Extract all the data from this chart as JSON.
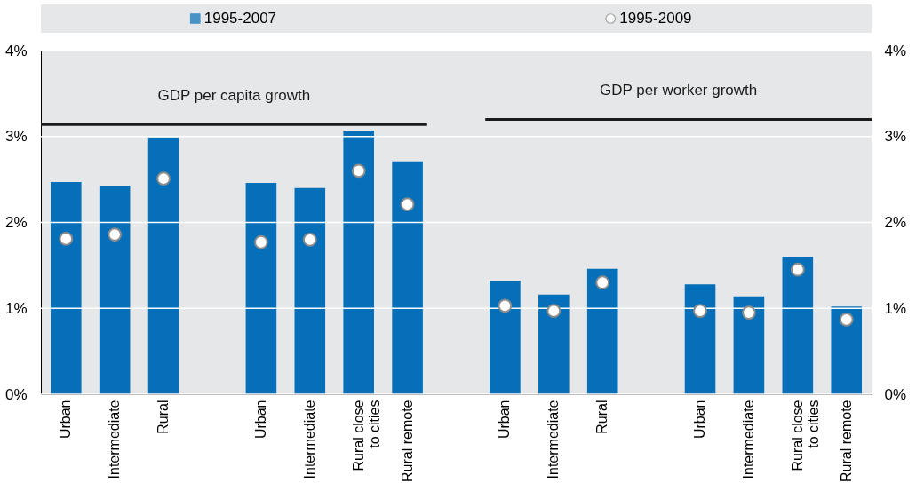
{
  "chart_data": {
    "type": "bar",
    "categories": [
      "Urban",
      "Intermediate",
      "Rural",
      null,
      "Urban",
      "Intermediate",
      "Rural close to cities",
      "Rural remote",
      null,
      "Urban",
      "Intermediate",
      "Rural",
      null,
      "Urban",
      "Intermediate",
      "Rural close to cities",
      "Rural remote"
    ],
    "series": [
      {
        "name": "1995-2007",
        "color": "#0570b9",
        "values": [
          2.47,
          2.43,
          2.99,
          null,
          2.46,
          2.4,
          3.07,
          2.71,
          null,
          1.32,
          1.16,
          1.46,
          null,
          1.28,
          1.14,
          1.6,
          1.02
        ]
      },
      {
        "name": "1995-2009",
        "type": "scatter",
        "color": "#ffffff",
        "values": [
          1.81,
          1.86,
          2.51,
          null,
          1.77,
          1.8,
          2.6,
          2.21,
          null,
          1.03,
          0.97,
          1.3,
          null,
          0.97,
          0.95,
          1.45,
          0.87
        ]
      }
    ],
    "ylim": [
      0,
      4
    ],
    "yticks": [
      {
        "value": 0,
        "label": "0%"
      },
      {
        "value": 1,
        "label": "1%"
      },
      {
        "value": 2,
        "label": "2%"
      },
      {
        "value": 3,
        "label": "3%"
      },
      {
        "value": 4,
        "label": "4%"
      }
    ],
    "y2lim": [
      0,
      4
    ],
    "y2ticks": [
      {
        "value": 0,
        "label": "0%"
      },
      {
        "value": 1,
        "label": "1%"
      },
      {
        "value": 2,
        "label": "2%"
      },
      {
        "value": 3,
        "label": "3%"
      },
      {
        "value": 4,
        "label": "4%"
      }
    ],
    "ref_lines": [
      {
        "axis": "y",
        "value": 3.14,
        "label": "GDP per capita growth"
      },
      {
        "axis": "y",
        "value": 3.2,
        "label": "GDP per worker growth"
      }
    ],
    "grid": "y",
    "legend": "top",
    "marker": "circle"
  }
}
